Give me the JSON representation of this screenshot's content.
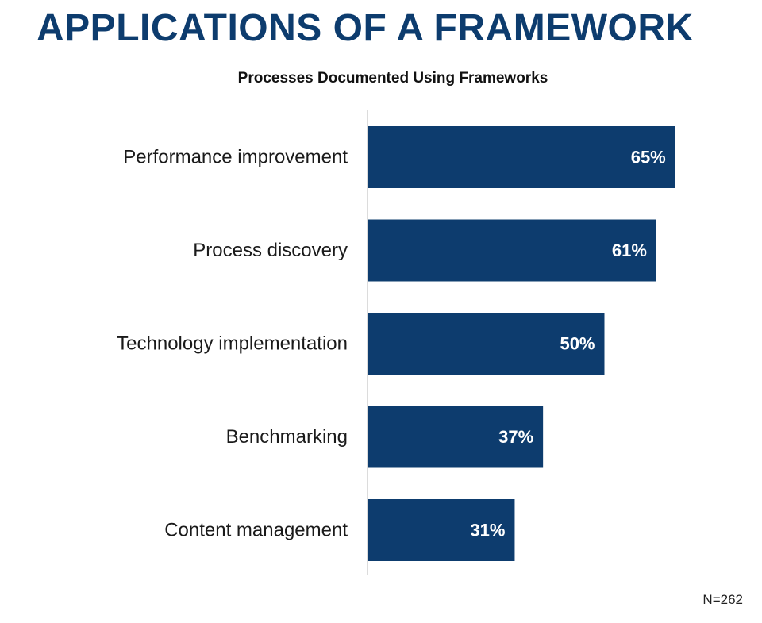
{
  "title": "APPLICATIONS OF A FRAMEWORK",
  "subtitle": "Processes Documented Using Frameworks",
  "footnote": "N=262",
  "colors": {
    "title": "#0d3c6e",
    "bar": "#0d3c6e",
    "bar_label": "#ffffff",
    "axis_line": "#d0d0d0"
  },
  "chart_data": {
    "type": "bar",
    "orientation": "horizontal",
    "title": "Processes Documented Using Frameworks",
    "xlabel": "",
    "ylabel": "",
    "xlim": [
      0,
      70
    ],
    "grid": false,
    "legend": "none",
    "categories": [
      "Performance improvement",
      "Process discovery",
      "Technology implementation",
      "Benchmarking",
      "Content management"
    ],
    "values": [
      65,
      61,
      50,
      37,
      31
    ],
    "value_labels": [
      "65%",
      "61%",
      "50%",
      "37%",
      "31%"
    ],
    "unit": "%"
  }
}
